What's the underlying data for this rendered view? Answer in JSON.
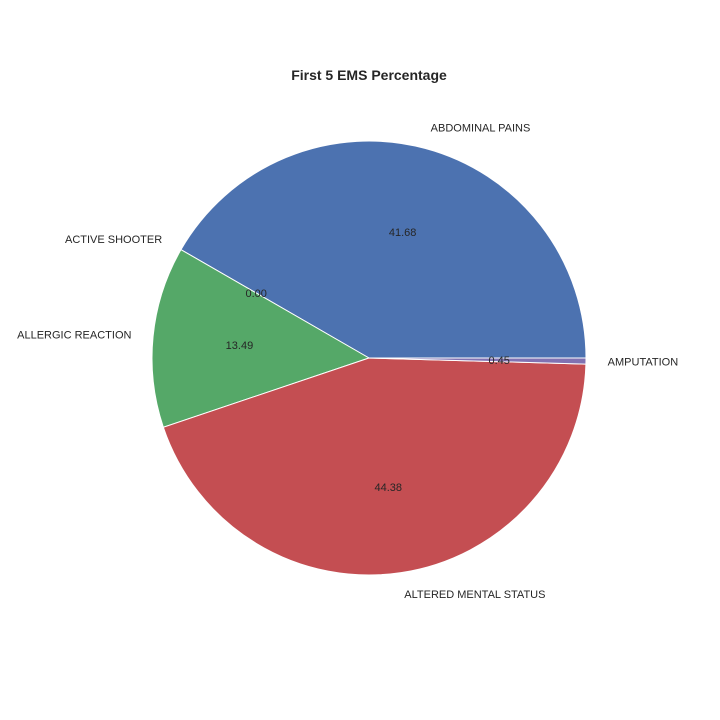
{
  "chart_data": {
    "type": "pie",
    "title": "First 5 EMS Percentage",
    "labels": [
      "ABDOMINAL PAINS",
      "ACTIVE SHOOTER",
      "ALLERGIC REACTION",
      "ALTERED MENTAL STATUS",
      "AMPUTATION"
    ],
    "values": [
      41.68,
      0.0,
      13.49,
      44.38,
      0.45
    ],
    "value_labels": [
      "41.68",
      "0.00",
      "13.49",
      "44.38",
      "0.45"
    ],
    "colors": [
      "#4c72b0",
      "#55a868",
      "#55a868",
      "#c44e52",
      "#8172b2"
    ],
    "start_angle_deg": 0,
    "direction": "counterclockwise",
    "edge_color": "#ffffff",
    "legend": "none"
  }
}
